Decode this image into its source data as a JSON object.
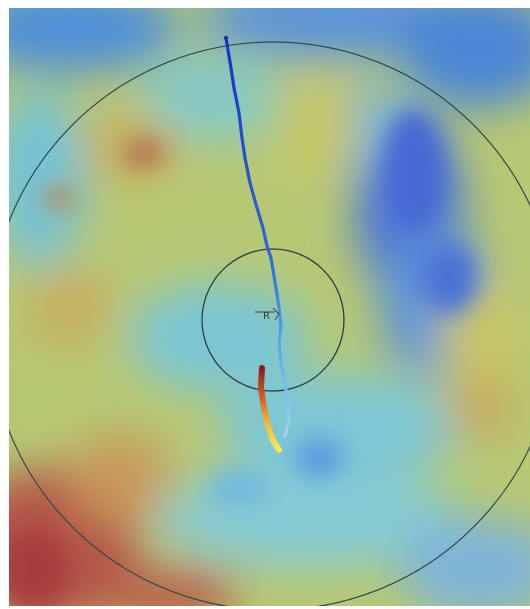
{
  "figure": {
    "center_marker_text": "R",
    "colors": {
      "outer_ring": "#2f4a4a",
      "inner_ring": "#2c3e3e",
      "track_start": "#1e2fbf",
      "track_mid": "#2f68e0",
      "track_turn": "#4aa8e8",
      "track_orange": "#e07a2a",
      "track_red": "#b0281e",
      "track_end": "#f3ec5a"
    }
  }
}
